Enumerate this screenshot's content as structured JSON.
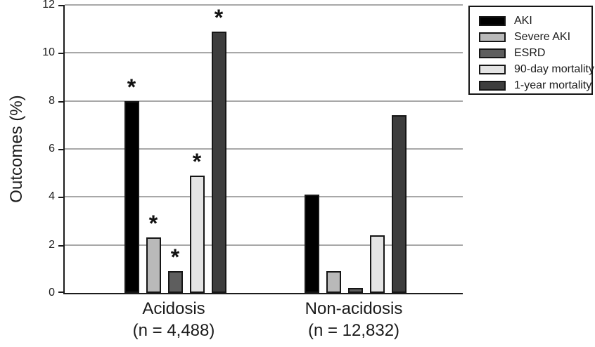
{
  "chart_data": {
    "type": "bar",
    "ylabel": "Outcomes (%)",
    "xlabel": "",
    "ylim": [
      0,
      12
    ],
    "yticks": [
      0,
      2,
      4,
      6,
      8,
      10,
      12
    ],
    "grid": "horizontal",
    "gridline_color": "#a8a8a8",
    "legend_position": "outside-top-right",
    "significance_marker": "*",
    "categories": [
      {
        "lines": [
          "Acidosis",
          "(n = 4,488)"
        ]
      },
      {
        "lines": [
          "Non-acidosis",
          "(n = 12,832)"
        ]
      }
    ],
    "series": [
      {
        "name": "AKI",
        "color": "#000000",
        "values": [
          8.0,
          4.1
        ],
        "significant": [
          true,
          false
        ]
      },
      {
        "name": "Severe AKI",
        "color": "#b9b9b9",
        "values": [
          2.3,
          0.9
        ],
        "significant": [
          true,
          false
        ]
      },
      {
        "name": "ESRD",
        "color": "#5e5e5e",
        "values": [
          0.9,
          0.2
        ],
        "significant": [
          true,
          false
        ]
      },
      {
        "name": "90-day mortality",
        "color": "#e4e4e4",
        "values": [
          4.9,
          2.4
        ],
        "significant": [
          true,
          false
        ]
      },
      {
        "name": "1-year mortality",
        "color": "#3d3d3d",
        "values": [
          10.9,
          7.4
        ],
        "significant": [
          true,
          false
        ]
      }
    ]
  }
}
